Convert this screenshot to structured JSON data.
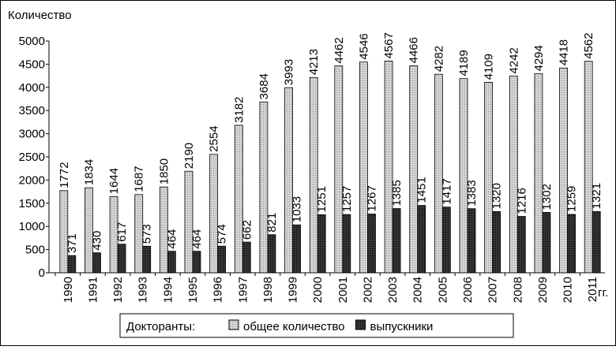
{
  "chart_data": {
    "type": "bar",
    "y_label": "Количество",
    "x_unit": "гг.",
    "legend_title": "Докторанты:",
    "categories": [
      "1990",
      "1991",
      "1992",
      "1993",
      "1994",
      "1995",
      "1996",
      "1997",
      "1998",
      "1999",
      "2000",
      "2001",
      "2002",
      "2003",
      "2004",
      "2005",
      "2006",
      "2007",
      "2008",
      "2009",
      "2010",
      "2011"
    ],
    "series": [
      {
        "name": "общее количество",
        "color": "#d4d4d4",
        "values": [
          1772,
          1834,
          1644,
          1687,
          1850,
          2190,
          2554,
          3182,
          3684,
          3993,
          4213,
          4462,
          4546,
          4567,
          4466,
          4282,
          4189,
          4109,
          4242,
          4294,
          4418,
          4562
        ]
      },
      {
        "name": "выпускники",
        "color": "#333333",
        "values": [
          371,
          430,
          617,
          573,
          464,
          464,
          574,
          662,
          821,
          1033,
          1251,
          1257,
          1267,
          1385,
          1451,
          1417,
          1383,
          1320,
          1216,
          1302,
          1259,
          1321
        ]
      }
    ],
    "ylim": [
      0,
      5000
    ],
    "yticks": [
      0,
      500,
      1000,
      1500,
      2000,
      2500,
      3000,
      3500,
      4000,
      4500,
      5000
    ],
    "legend": "bottom"
  }
}
